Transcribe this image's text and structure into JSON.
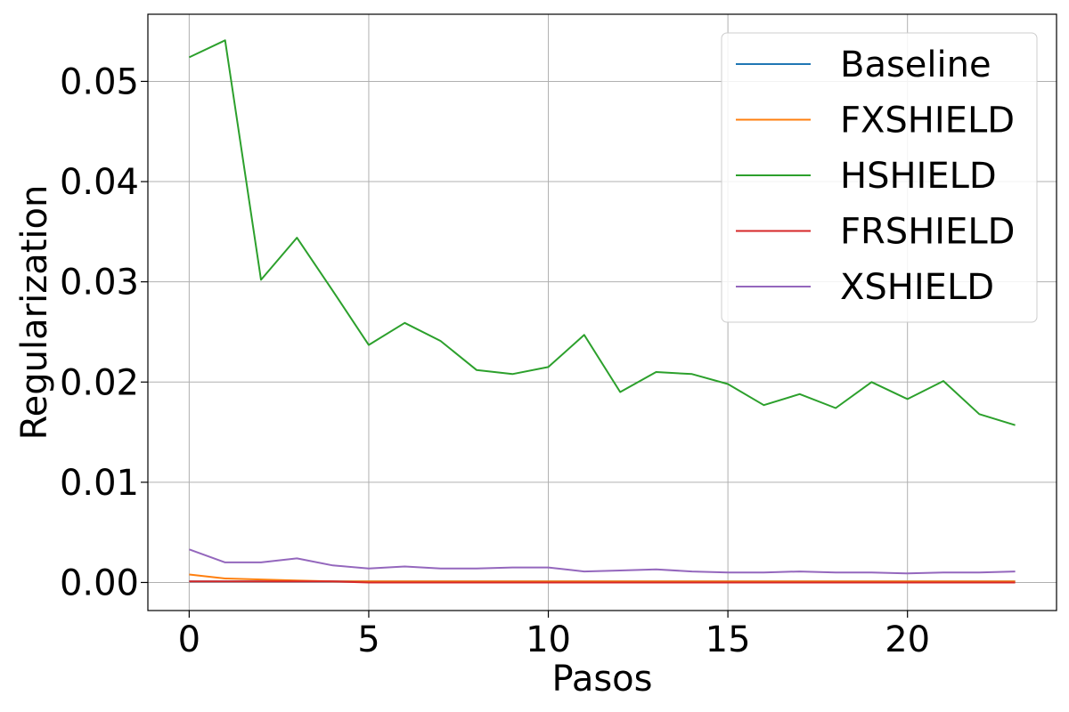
{
  "chart_data": {
    "type": "line",
    "title": "",
    "xlabel": "Pasos",
    "ylabel": "Regularization",
    "xlim": [
      -1.15,
      24.15
    ],
    "ylim": [
      -0.0028,
      0.0567
    ],
    "grid": true,
    "legend_position": "top-right",
    "x_ticks": [
      0,
      5,
      10,
      15,
      20
    ],
    "x_tick_labels": [
      "0",
      "5",
      "10",
      "15",
      "20"
    ],
    "y_ticks": [
      0.0,
      0.01,
      0.02,
      0.03,
      0.04,
      0.05
    ],
    "y_tick_labels": [
      "0.00",
      "0.01",
      "0.02",
      "0.03",
      "0.04",
      "0.05"
    ],
    "x": [
      0,
      1,
      2,
      3,
      4,
      5,
      6,
      7,
      8,
      9,
      10,
      11,
      12,
      13,
      14,
      15,
      16,
      17,
      18,
      19,
      20,
      21,
      22,
      23
    ],
    "series": [
      {
        "name": "Baseline",
        "color": "#1f77b4",
        "values": [
          0.0001,
          0.0001,
          0.0001,
          0.0001,
          0.0001,
          0.0001,
          0.0001,
          0.0001,
          0.0001,
          0.0001,
          0.0001,
          0.0001,
          0.0001,
          0.0001,
          0.0001,
          0.0001,
          0.0001,
          0.0001,
          0.0001,
          0.0001,
          0.0001,
          0.0001,
          0.0001,
          0.0001
        ]
      },
      {
        "name": "FXSHIELD",
        "color": "#ff7f0e",
        "values": [
          0.0008,
          0.0004,
          0.0003,
          0.0002,
          0.0001,
          0.0001,
          0.0001,
          0.0001,
          0.0001,
          0.0001,
          0.0001,
          0.0001,
          0.0001,
          0.0001,
          0.0001,
          0.0001,
          0.0001,
          0.0001,
          0.0001,
          0.0001,
          0.0001,
          0.0001,
          0.0001,
          0.0001
        ]
      },
      {
        "name": "HSHIELD",
        "color": "#2ca02c",
        "values": [
          0.0524,
          0.0541,
          0.0302,
          0.0344,
          0.0291,
          0.0237,
          0.0259,
          0.0241,
          0.0212,
          0.0208,
          0.0215,
          0.0247,
          0.019,
          0.021,
          0.0208,
          0.0198,
          0.0177,
          0.0188,
          0.0174,
          0.02,
          0.0183,
          0.0201,
          0.0168,
          0.0157
        ]
      },
      {
        "name": "FRSHIELD",
        "color": "#d62728",
        "values": [
          0.0001,
          0.0001,
          0.0001,
          0.0001,
          0.0001,
          0.0,
          0.0,
          0.0,
          0.0,
          0.0,
          0.0,
          0.0,
          0.0,
          0.0,
          0.0,
          0.0,
          0.0,
          0.0,
          0.0,
          0.0,
          0.0,
          0.0,
          0.0,
          0.0
        ]
      },
      {
        "name": "XSHIELD",
        "color": "#9467bd",
        "values": [
          0.0033,
          0.002,
          0.002,
          0.0024,
          0.0017,
          0.0014,
          0.0016,
          0.0014,
          0.0014,
          0.0015,
          0.0015,
          0.0011,
          0.0012,
          0.0013,
          0.0011,
          0.001,
          0.001,
          0.0011,
          0.001,
          0.001,
          0.0009,
          0.001,
          0.001,
          0.0011
        ]
      }
    ]
  }
}
